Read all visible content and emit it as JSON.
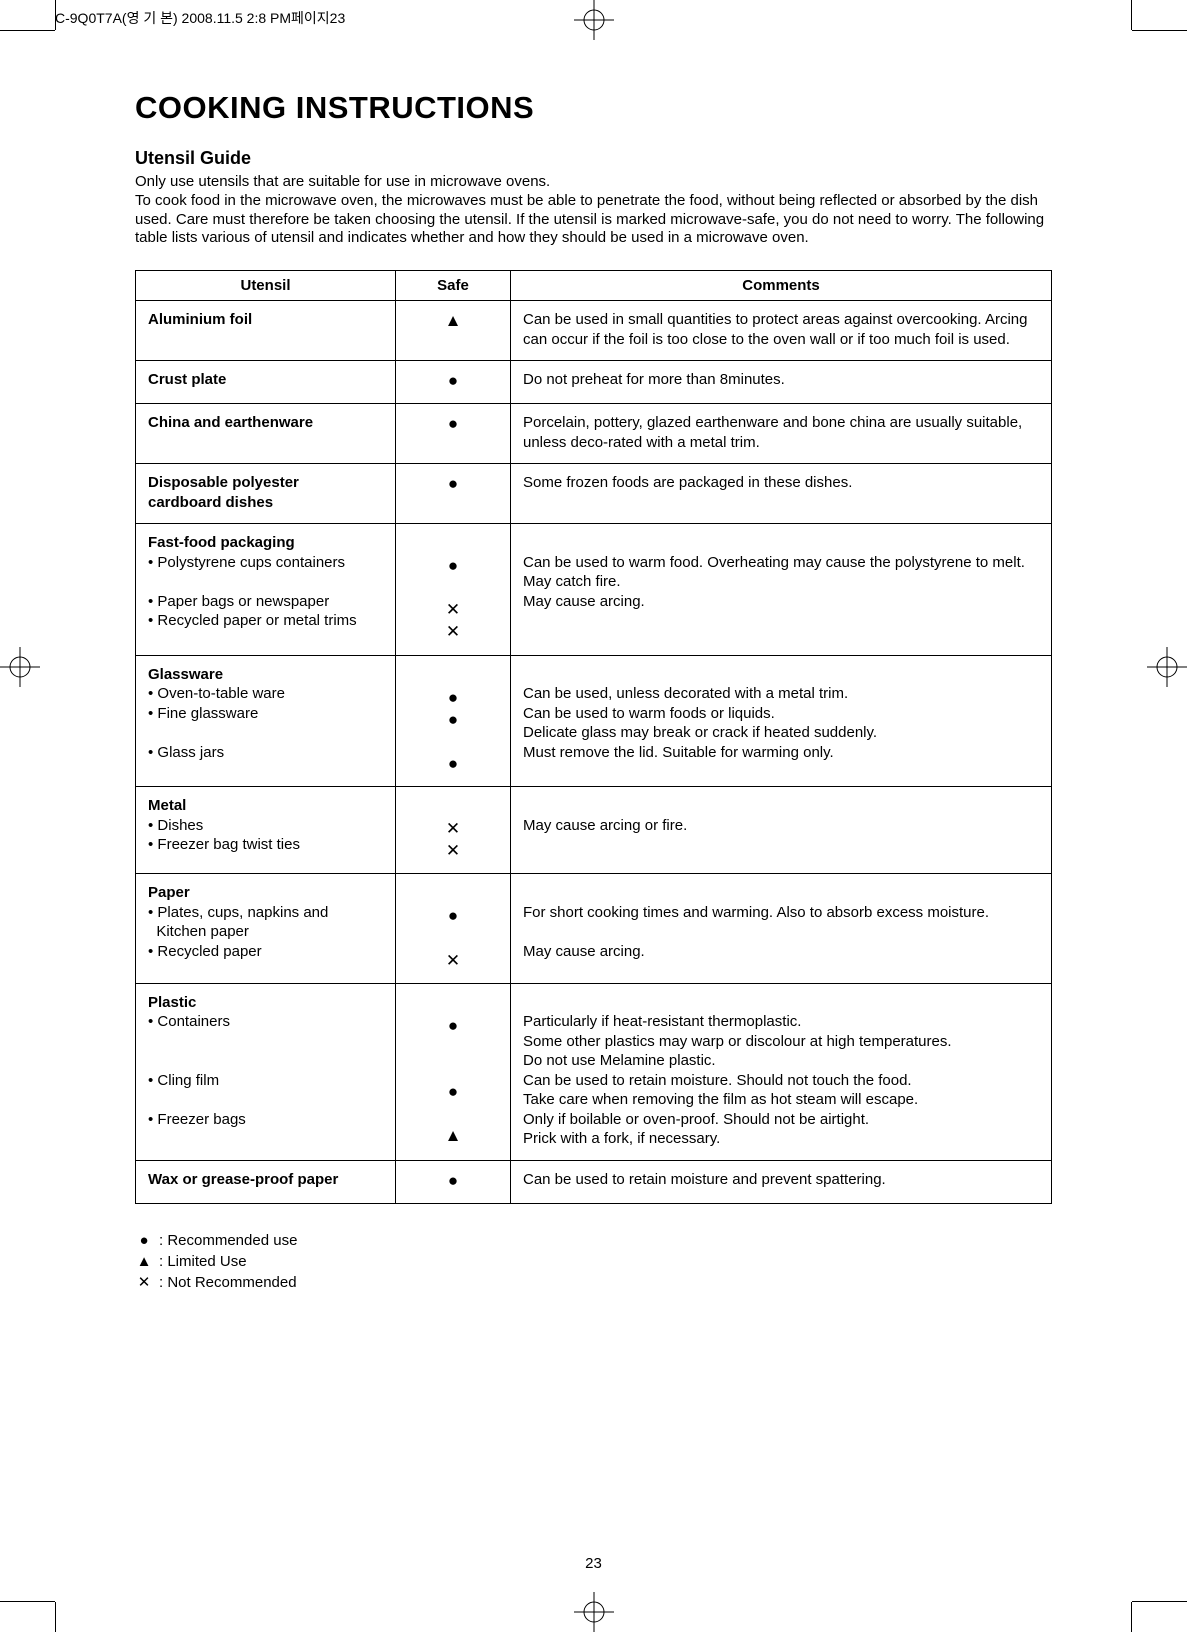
{
  "print_header": "C-9Q0T7A(영 기 본)  2008.11.5 2:8 PM페이지23",
  "title": "COOKING INSTRUCTIONS",
  "subtitle": "Utensil Guide",
  "intro_lines": [
    "Only use utensils that are suitable for use in microwave ovens.",
    "To cook food in the microwave oven, the microwaves must be able to penetrate the food, without being reflected or absorbed by the dish used. Care must therefore be taken choosing the utensil. If the utensil is marked microwave-safe, you do not need to worry. The following table lists various of utensil and indicates whether and how they should be used in a microwave oven."
  ],
  "headers": {
    "utensil": "Utensil",
    "safe": "Safe",
    "comments": "Comments"
  },
  "symbols": {
    "rec": "●",
    "lim": "▲",
    "not": "✕"
  },
  "legend": {
    "rec": ": Recommended use",
    "lim": ": Limited Use",
    "not": ": Not Recommended"
  },
  "rows": [
    {
      "utensil_html": "<span class='b'>Aluminium foil</span>",
      "safe_html": "▲",
      "comment_html": "Can be used in small quantities to protect areas against overcooking. Arcing can occur if the foil is too close to the oven wall or if too much foil is used."
    },
    {
      "utensil_html": "<span class='b'>Crust plate</span>",
      "safe_html": "●",
      "comment_html": "Do not preheat for more than 8minutes."
    },
    {
      "utensil_html": "<span class='b'>China and earthenware</span>",
      "safe_html": "●",
      "comment_html": "Porcelain, pottery, glazed earthenware and bone china are usually suitable, unless deco-rated with a metal trim."
    },
    {
      "utensil_html": "<span class='b'>Disposable polyester<br>cardboard dishes</span>",
      "safe_html": "●",
      "comment_html": "Some frozen foods are packaged in these dishes."
    },
    {
      "utensil_html": "<span class='b'>Fast-food packaging</span><br>• Polystyrene cups containers<br><br>• Paper bags or newspaper<br>• Recycled paper or metal trims",
      "safe_html": "<br>●<br><br>✕<br>✕",
      "comment_html": "<br>Can be used to warm food. Overheating may cause the polystyrene to melt.<br>May catch fire.<br>May cause arcing."
    },
    {
      "utensil_html": "<span class='b'>Glassware</span><br>• Oven-to-table ware<br>• Fine glassware<br><br>• Glass jars",
      "safe_html": "<br>●<br>●<br><br>●",
      "comment_html": "<br>Can be used, unless decorated with a metal trim.<br>Can be used to warm foods or liquids.<br>Delicate glass may break or crack if heated suddenly.<br>Must remove the lid. Suitable for warming only."
    },
    {
      "utensil_html": "<span class='b'>Metal</span><br>• Dishes<br>• Freezer bag twist ties",
      "safe_html": "<br>✕<br>✕",
      "comment_html": "<br>May cause arcing or fire."
    },
    {
      "utensil_html": "<span class='b'>Paper</span><br>• Plates, cups, napkins and<br>&nbsp;&nbsp;Kitchen paper<br>• Recycled paper",
      "safe_html": "<br>●<br><br>✕",
      "comment_html": "<br>For short cooking times and warming. Also to absorb excess moisture.<br><br>May cause arcing."
    },
    {
      "utensil_html": "<span class='b'>Plastic</span><br>• Containers<br><br><br>• Cling film<br><br>• Freezer bags",
      "safe_html": "<br>●<br><br><br>●<br><br>▲",
      "comment_html": "<br>Particularly if heat-resistant thermoplastic.<br>Some other plastics may warp or discolour at high temperatures.<br>Do not use Melamine plastic.<br>Can be used to retain moisture. Should not touch the food.<br>Take care when removing the film as hot steam will escape.<br>Only if boilable or oven-proof. Should not be airtight.<br>Prick with a fork, if necessary."
    },
    {
      "utensil_html": "<span class='b'>Wax or grease-proof paper</span>",
      "safe_html": "●",
      "comment_html": "Can be used to retain moisture and prevent spattering."
    }
  ],
  "page_number": "23"
}
